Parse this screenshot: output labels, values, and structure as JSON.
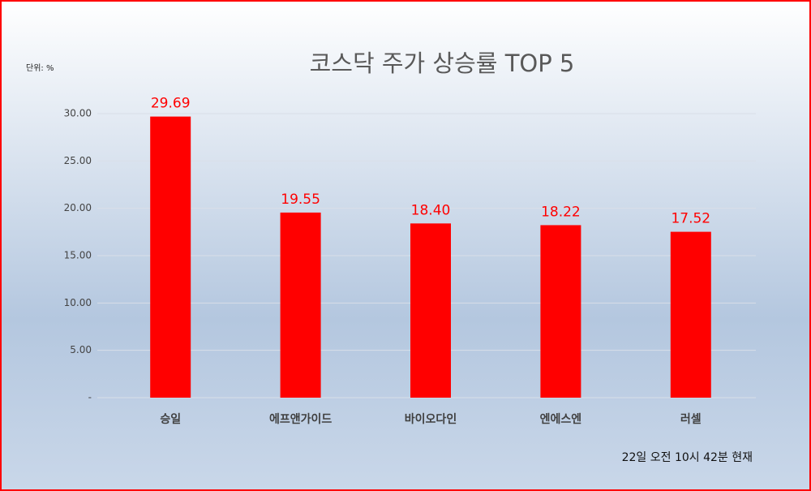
{
  "chart_data": {
    "type": "bar",
    "title": "코스닥 주가 상승률 TOP 5",
    "unit_label": "단위: %",
    "footnote": "22일 오전 10시 42분 현재",
    "categories": [
      "승일",
      "에프앤가이드",
      "바이오다인",
      "엔에스엔",
      "러셀"
    ],
    "values": [
      29.69,
      19.55,
      18.4,
      18.22,
      17.52
    ],
    "value_labels": [
      "29.69",
      "19.55",
      "18.40",
      "18.22",
      "17.52"
    ],
    "color": "#ff0000",
    "ylim": [
      0,
      30
    ],
    "yticks": [
      {
        "value": 0,
        "label": "-"
      },
      {
        "value": 5,
        "label": "5.00"
      },
      {
        "value": 10,
        "label": "10.00"
      },
      {
        "value": 15,
        "label": "15.00"
      },
      {
        "value": 20,
        "label": "20.00"
      },
      {
        "value": 25,
        "label": "25.00"
      },
      {
        "value": 30,
        "label": "30.00"
      }
    ],
    "grid": true
  }
}
